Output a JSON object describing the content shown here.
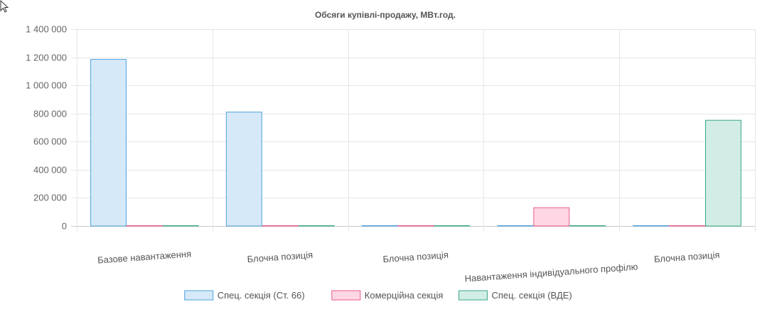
{
  "chart_data": {
    "type": "bar",
    "title": "Обсяги купівлі-продажу, МВт.год.",
    "categories": [
      "Базове навантаження",
      "Блочна позиція",
      "Блочна позиція",
      "Навантаження індивідуального профілю",
      "Блочна позиція"
    ],
    "ylim": [
      0,
      1400000
    ],
    "yticks": [
      0,
      200000,
      400000,
      600000,
      800000,
      1000000,
      1200000,
      1400000
    ],
    "ytick_labels": [
      "0",
      "200 000",
      "400 000",
      "600 000",
      "800 000",
      "1 000 000",
      "1 200 000",
      "1 400 000"
    ],
    "grid": true,
    "legend_position": "bottom",
    "series": [
      {
        "name": "Спец. секція (Ст. 66)",
        "values": [
          1185000,
          810000,
          0,
          0,
          0
        ],
        "fill": "#d6e9f8",
        "stroke": "#4ea3dc"
      },
      {
        "name": "Комерційна секція",
        "values": [
          0,
          0,
          0,
          130000,
          0
        ],
        "fill": "#ffd6e3",
        "stroke": "#e85a8a"
      },
      {
        "name": "Спец. секція (ВДЕ)",
        "values": [
          0,
          0,
          0,
          0,
          752000
        ],
        "fill": "#d2ede6",
        "stroke": "#3aa889"
      }
    ]
  }
}
